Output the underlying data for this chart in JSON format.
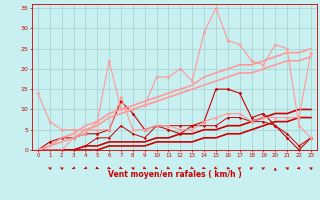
{
  "xlabel": "Vent moyen/en rafales ( km/h )",
  "background_color": "#c8f0f0",
  "grid_color": "#aad4d4",
  "text_color": "#cc0000",
  "xlim": [
    -0.5,
    23.5
  ],
  "ylim": [
    0,
    36
  ],
  "yticks": [
    0,
    5,
    10,
    15,
    20,
    25,
    30,
    35
  ],
  "xticks": [
    0,
    1,
    2,
    3,
    4,
    5,
    6,
    7,
    8,
    9,
    10,
    11,
    12,
    13,
    14,
    15,
    16,
    17,
    18,
    19,
    20,
    21,
    22,
    23
  ],
  "lines": [
    {
      "x": [
        0,
        1,
        2,
        3,
        4,
        5,
        6,
        7,
        8,
        9,
        10,
        11,
        12,
        13,
        14,
        15,
        16,
        17,
        18,
        19,
        20,
        21,
        22,
        23
      ],
      "y": [
        0,
        2,
        3,
        3,
        4,
        4,
        5,
        12,
        9,
        5,
        6,
        5,
        4,
        6,
        7,
        15,
        15,
        14,
        8,
        9,
        6,
        3,
        0,
        3
      ],
      "color": "#cc0000",
      "lw": 0.8,
      "marker": "D",
      "ms": 1.5
    },
    {
      "x": [
        0,
        1,
        2,
        3,
        4,
        5,
        6,
        7,
        8,
        9,
        10,
        11,
        12,
        13,
        14,
        15,
        16,
        17,
        18,
        19,
        20,
        21,
        22,
        23
      ],
      "y": [
        0,
        0,
        0,
        0,
        1,
        3,
        3,
        6,
        4,
        3,
        6,
        6,
        6,
        6,
        6,
        6,
        8,
        8,
        7,
        7,
        6,
        4,
        1,
        3
      ],
      "color": "#cc0000",
      "lw": 0.7,
      "marker": "D",
      "ms": 1.2
    },
    {
      "x": [
        0,
        1,
        2,
        3,
        4,
        5,
        6,
        7,
        8,
        9,
        10,
        11,
        12,
        13,
        14,
        15,
        16,
        17,
        18,
        19,
        20,
        21,
        22,
        23
      ],
      "y": [
        0,
        0,
        0,
        0,
        0,
        0,
        1,
        1,
        1,
        1,
        2,
        2,
        2,
        2,
        3,
        3,
        4,
        4,
        5,
        6,
        7,
        7,
        8,
        8
      ],
      "color": "#cc0000",
      "lw": 1.2,
      "marker": null,
      "ms": 0
    },
    {
      "x": [
        0,
        1,
        2,
        3,
        4,
        5,
        6,
        7,
        8,
        9,
        10,
        11,
        12,
        13,
        14,
        15,
        16,
        17,
        18,
        19,
        20,
        21,
        22,
        23
      ],
      "y": [
        0,
        0,
        0,
        0,
        1,
        1,
        2,
        2,
        2,
        2,
        3,
        3,
        4,
        4,
        5,
        5,
        6,
        6,
        7,
        8,
        9,
        9,
        10,
        10
      ],
      "color": "#cc0000",
      "lw": 1.2,
      "marker": null,
      "ms": 0
    },
    {
      "x": [
        0,
        1,
        2,
        3,
        4,
        5,
        6,
        7,
        8,
        9,
        10,
        11,
        12,
        13,
        14,
        15,
        16,
        17,
        18,
        19,
        20,
        21,
        22,
        23
      ],
      "y": [
        14,
        7,
        5,
        5,
        5,
        5,
        5,
        13,
        5,
        5,
        6,
        6,
        5,
        5,
        7,
        8,
        9,
        9,
        7,
        8,
        8,
        8,
        8,
        24
      ],
      "color": "#ff9999",
      "lw": 0.8,
      "marker": "D",
      "ms": 1.5
    },
    {
      "x": [
        0,
        1,
        2,
        3,
        4,
        5,
        6,
        7,
        8,
        9,
        10,
        11,
        12,
        13,
        14,
        15,
        16,
        17,
        18,
        19,
        20,
        21,
        22,
        23
      ],
      "y": [
        0,
        0,
        0,
        3,
        4,
        7,
        22,
        10,
        10,
        11,
        18,
        18,
        20,
        17,
        29,
        35,
        27,
        26,
        22,
        21,
        26,
        25,
        6,
        3
      ],
      "color": "#ff9999",
      "lw": 0.8,
      "marker": "D",
      "ms": 1.5
    },
    {
      "x": [
        0,
        1,
        2,
        3,
        4,
        5,
        6,
        7,
        8,
        9,
        10,
        11,
        12,
        13,
        14,
        15,
        16,
        17,
        18,
        19,
        20,
        21,
        22,
        23
      ],
      "y": [
        0,
        1,
        2,
        3,
        5,
        6,
        8,
        9,
        10,
        11,
        12,
        13,
        14,
        15,
        16,
        17,
        18,
        19,
        19,
        20,
        21,
        22,
        22,
        23
      ],
      "color": "#ff9999",
      "lw": 1.2,
      "marker": null,
      "ms": 0
    },
    {
      "x": [
        0,
        1,
        2,
        3,
        4,
        5,
        6,
        7,
        8,
        9,
        10,
        11,
        12,
        13,
        14,
        15,
        16,
        17,
        18,
        19,
        20,
        21,
        22,
        23
      ],
      "y": [
        0,
        1,
        3,
        4,
        6,
        7,
        9,
        10,
        11,
        12,
        13,
        14,
        15,
        16,
        18,
        19,
        20,
        21,
        21,
        22,
        23,
        24,
        24,
        25
      ],
      "color": "#ff9999",
      "lw": 1.2,
      "marker": null,
      "ms": 0
    }
  ],
  "arrows": [
    [
      1,
      225
    ],
    [
      2,
      225
    ],
    [
      3,
      315
    ],
    [
      4,
      315
    ],
    [
      5,
      45
    ],
    [
      6,
      45
    ],
    [
      7,
      45
    ],
    [
      8,
      225
    ],
    [
      9,
      45
    ],
    [
      10,
      45
    ],
    [
      11,
      45
    ],
    [
      12,
      45
    ],
    [
      13,
      45
    ],
    [
      14,
      45
    ],
    [
      15,
      45
    ],
    [
      16,
      90
    ],
    [
      17,
      135
    ],
    [
      18,
      135
    ],
    [
      19,
      135
    ],
    [
      20,
      180
    ],
    [
      21,
      225
    ],
    [
      22,
      270
    ],
    [
      23,
      225
    ]
  ]
}
